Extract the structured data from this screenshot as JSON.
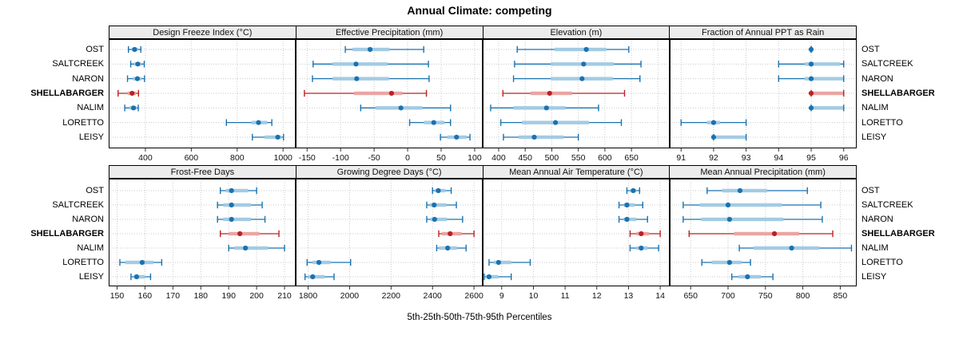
{
  "title": "Annual Climate: competing",
  "caption": "5th-25th-50th-75th-95th Percentiles",
  "sites": [
    {
      "name": "OST",
      "bold": false
    },
    {
      "name": "SALTCREEK",
      "bold": false
    },
    {
      "name": "NARON",
      "bold": false
    },
    {
      "name": "SHELLABARGER",
      "bold": true
    },
    {
      "name": "NALIM",
      "bold": false
    },
    {
      "name": "LORETTO",
      "bold": false
    },
    {
      "name": "LEISY",
      "bold": false
    }
  ],
  "colors": {
    "blue": "#1a72b0",
    "blue_light": "#a3cbe3",
    "red": "#bb2124",
    "red_light": "#e9a5a3",
    "highlight_site": "SHELLABARGER",
    "strip_bg": "#ececec",
    "grid": "#c9c9c9",
    "border": "#000000"
  },
  "chart_data": {
    "type": "dotplot-interval",
    "note": "each series gives [5th,25th,50th,75th,95th] percentiles; dot=50th, thick band=25th-75th, thin line with caps=5th-95th",
    "legend_position": "none",
    "grid": "dotted",
    "panels": [
      {
        "title": "Design Freeze Index (°C)",
        "row": 0,
        "xlim": [
          240,
          1055
        ],
        "ticks": [
          400,
          600,
          800,
          1000
        ],
        "series": [
          {
            "site": "OST",
            "p": [
              326,
              341,
              353,
              367,
              380
            ]
          },
          {
            "site": "SALTCREEK",
            "p": [
              336,
              351,
              367,
              382,
              395
            ]
          },
          {
            "site": "NARON",
            "p": [
              322,
              345,
              365,
              383,
              396
            ]
          },
          {
            "site": "SHELLABARGER",
            "p": [
              281,
              322,
              342,
              358,
              370
            ]
          },
          {
            "site": "NALIM",
            "p": [
              310,
              330,
              348,
              362,
              369
            ]
          },
          {
            "site": "LORETTO",
            "p": [
              753,
              862,
              893,
              930,
              951
            ]
          },
          {
            "site": "LEISY",
            "p": [
              866,
              920,
              977,
              993,
              1002
            ]
          }
        ]
      },
      {
        "title": "Effective Precipitation (mm)",
        "row": 0,
        "xlim": [
          -167,
          112
        ],
        "ticks": [
          -150,
          -100,
          -50,
          0,
          50,
          100
        ],
        "series": [
          {
            "site": "OST",
            "p": [
              -93,
              -82,
              -56,
              -27,
              24
            ]
          },
          {
            "site": "SALTCREEK",
            "p": [
              -141,
              -112,
              -77,
              -30,
              31
            ]
          },
          {
            "site": "NARON",
            "p": [
              -142,
              -112,
              -76,
              -28,
              32
            ]
          },
          {
            "site": "SHELLABARGER",
            "p": [
              -154,
              -80,
              -24,
              -8,
              28
            ]
          },
          {
            "site": "NALIM",
            "p": [
              -70,
              -48,
              -10,
              22,
              64
            ]
          },
          {
            "site": "LORETTO",
            "p": [
              3,
              24,
              39,
              55,
              64
            ]
          },
          {
            "site": "LEISY",
            "p": [
              49,
              59,
              73,
              88,
              93
            ]
          }
        ]
      },
      {
        "title": "Elevation (m)",
        "row": 0,
        "xlim": [
          370,
          722
        ],
        "ticks": [
          400,
          450,
          500,
          550,
          600,
          650
        ],
        "series": [
          {
            "site": "OST",
            "p": [
              435,
              505,
              565,
              603,
              645
            ]
          },
          {
            "site": "SALTCREEK",
            "p": [
              430,
              498,
              560,
              617,
              668
            ]
          },
          {
            "site": "NARON",
            "p": [
              428,
              498,
              557,
              615,
              666
            ]
          },
          {
            "site": "SHELLABARGER",
            "p": [
              408,
              460,
              496,
              538,
              637
            ]
          },
          {
            "site": "NALIM",
            "p": [
              385,
              428,
              490,
              526,
              588
            ]
          },
          {
            "site": "LORETTO",
            "p": [
              404,
              444,
              507,
              570,
              631
            ]
          },
          {
            "site": "LEISY",
            "p": [
              409,
              438,
              467,
              522,
              550
            ]
          }
        ]
      },
      {
        "title": "Fraction of Annual PPT as Rain",
        "row": 0,
        "xlim": [
          90.65,
          96.4
        ],
        "ticks": [
          91,
          92,
          93,
          94,
          95,
          96
        ],
        "series": [
          {
            "site": "OST",
            "p": [
              95,
              95,
              95,
              95,
              95
            ]
          },
          {
            "site": "SALTCREEK",
            "p": [
              94,
              94.8,
              95,
              95.9,
              96
            ]
          },
          {
            "site": "NARON",
            "p": [
              94,
              94.8,
              95,
              96,
              96
            ]
          },
          {
            "site": "SHELLABARGER",
            "p": [
              95,
              95,
              95,
              96,
              96
            ]
          },
          {
            "site": "NALIM",
            "p": [
              95,
              95,
              95,
              96,
              96
            ]
          },
          {
            "site": "LORETTO",
            "p": [
              91,
              91.8,
              92,
              92.2,
              93
            ]
          },
          {
            "site": "LEISY",
            "p": [
              92,
              92,
              92,
              93,
              93
            ]
          }
        ]
      },
      {
        "title": "Frost-Free Days",
        "row": 1,
        "xlim": [
          147,
          214
        ],
        "ticks": [
          150,
          160,
          170,
          180,
          190,
          200,
          210
        ],
        "series": [
          {
            "site": "OST",
            "p": [
              187,
              189,
              191,
              197,
              200
            ]
          },
          {
            "site": "SALTCREEK",
            "p": [
              186,
              188,
              191,
              198,
              202
            ]
          },
          {
            "site": "NARON",
            "p": [
              186,
              188,
              191,
              198,
              203
            ]
          },
          {
            "site": "SHELLABARGER",
            "p": [
              187,
              190,
              194,
              201,
              208
            ]
          },
          {
            "site": "NALIM",
            "p": [
              190,
              192,
              196,
              204,
              210
            ]
          },
          {
            "site": "LORETTO",
            "p": [
              151,
              153,
              159,
              163,
              166
            ]
          },
          {
            "site": "LEISY",
            "p": [
              155,
              156,
              157,
              160,
              162
            ]
          }
        ]
      },
      {
        "title": "Growing Degree Days (°C)",
        "row": 1,
        "xlim": [
          1740,
          2642
        ],
        "ticks": [
          1800,
          2000,
          2200,
          2400,
          2600
        ],
        "series": [
          {
            "site": "OST",
            "p": [
              2400,
              2412,
              2428,
              2462,
              2490
            ]
          },
          {
            "site": "SALTCREEK",
            "p": [
              2372,
              2388,
              2408,
              2468,
              2515
            ]
          },
          {
            "site": "NARON",
            "p": [
              2372,
              2390,
              2410,
              2470,
              2545
            ]
          },
          {
            "site": "SHELLABARGER",
            "p": [
              2430,
              2445,
              2485,
              2540,
              2600
            ]
          },
          {
            "site": "NALIM",
            "p": [
              2420,
              2432,
              2473,
              2518,
              2562
            ]
          },
          {
            "site": "LORETTO",
            "p": [
              1795,
              1822,
              1852,
              1908,
              2005
            ]
          },
          {
            "site": "LEISY",
            "p": [
              1785,
              1800,
              1822,
              1880,
              1925
            ]
          }
        ]
      },
      {
        "title": "Mean Annual Air Temperature (°C)",
        "row": 1,
        "xlim": [
          8.4,
          14.3
        ],
        "ticks": [
          9,
          10,
          11,
          12,
          13,
          14
        ],
        "series": [
          {
            "site": "OST",
            "p": [
              12.95,
              13.05,
              13.15,
              13.25,
              13.35
            ]
          },
          {
            "site": "SALTCREEK",
            "p": [
              12.7,
              12.85,
              12.95,
              13.2,
              13.45
            ]
          },
          {
            "site": "NARON",
            "p": [
              12.7,
              12.85,
              12.95,
              13.25,
              13.6
            ]
          },
          {
            "site": "SHELLABARGER",
            "p": [
              13.05,
              13.25,
              13.4,
              13.65,
              14.0
            ]
          },
          {
            "site": "NALIM",
            "p": [
              13.05,
              13.25,
              13.4,
              13.6,
              13.95
            ]
          },
          {
            "site": "LORETTO",
            "p": [
              8.6,
              8.75,
              8.9,
              9.3,
              9.9
            ]
          },
          {
            "site": "LEISY",
            "p": [
              8.45,
              8.5,
              8.6,
              8.9,
              9.3
            ]
          }
        ]
      },
      {
        "title": "Mean Annual Precipitation (mm)",
        "row": 1,
        "xlim": [
          622,
          872
        ],
        "ticks": [
          650,
          700,
          750,
          800,
          850
        ],
        "series": [
          {
            "site": "OST",
            "p": [
              672,
              692,
              716,
              752,
              806
            ]
          },
          {
            "site": "SALTCREEK",
            "p": [
              640,
              662,
              700,
              772,
              824
            ]
          },
          {
            "site": "NARON",
            "p": [
              640,
              664,
              702,
              774,
              826
            ]
          },
          {
            "site": "SHELLABARGER",
            "p": [
              648,
              708,
              762,
              795,
              840
            ]
          },
          {
            "site": "NALIM",
            "p": [
              715,
              734,
              785,
              822,
              865
            ]
          },
          {
            "site": "LORETTO",
            "p": [
              665,
              678,
              702,
              718,
              730
            ]
          },
          {
            "site": "LEISY",
            "p": [
              705,
              714,
              726,
              744,
              760
            ]
          }
        ]
      }
    ]
  }
}
